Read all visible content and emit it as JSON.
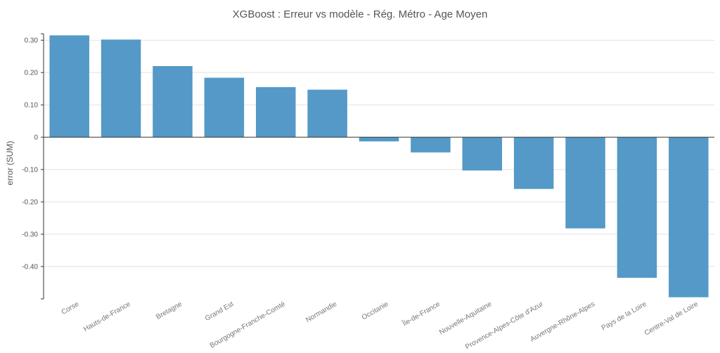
{
  "chart_data": {
    "type": "bar",
    "title": "XGBoost  : Erreur vs modèle - Rég. Métro - Age Moyen",
    "ylabel": "error (SUM)",
    "xlabel": "",
    "categories": [
      "Corse",
      "Hauts-de-France",
      "Bretagne",
      "Grand Est",
      "Bourgogne-Franche-Comté",
      "Normandie",
      "Occitanie",
      "Île-de-France",
      "Nouvelle-Aquitaine",
      "Provence-Alpes-Côte d'Azur",
      "Auvergne-Rhône-Alpes",
      "Pays de la Loire",
      "Centre-Val de Loire"
    ],
    "values": [
      0.315,
      0.302,
      0.22,
      0.184,
      0.155,
      0.147,
      -0.013,
      -0.047,
      -0.103,
      -0.16,
      -0.282,
      -0.435,
      -0.495
    ],
    "ylim": [
      -0.5,
      0.32
    ],
    "yticks": [
      0.3,
      0.2,
      0.1,
      0,
      -0.1,
      -0.2,
      -0.3,
      -0.4
    ],
    "ytick_labels": [
      "0.30",
      "0.20",
      "0.10",
      "0",
      "-0.10",
      "-0.20",
      "-0.30",
      "-0.40"
    ],
    "grid": true,
    "color": "#5499c7"
  }
}
